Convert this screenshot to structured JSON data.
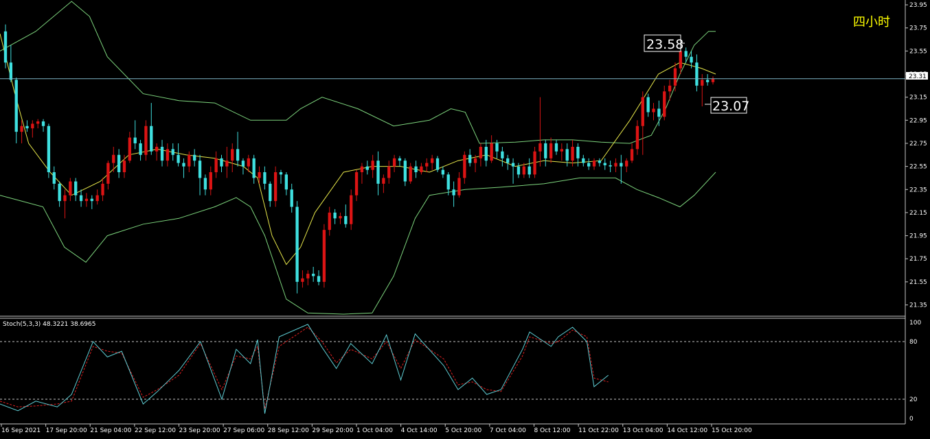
{
  "timeframe_label": "四小时",
  "price_axis": {
    "labels": [
      "23.95",
      "23.75",
      "23.55",
      "23.35",
      "23.15",
      "22.95",
      "22.75",
      "22.55",
      "22.35",
      "22.15",
      "21.95",
      "21.75",
      "21.55",
      "21.35"
    ],
    "min": 21.27,
    "max": 23.98
  },
  "current_price": "23.31",
  "annotations": {
    "high_label": "23.58",
    "low_label": "23.07"
  },
  "time_axis_labels": [
    "16 Sep 2021",
    "17 Sep 20:00",
    "21 Sep 04:00",
    "22 Sep 12:00",
    "23 Sep 20:00",
    "27 Sep 06:00",
    "28 Sep 12:00",
    "29 Sep 20:00",
    "1 Oct 04:00",
    "4 Oct 14:00",
    "5 Oct 20:00",
    "7 Oct 04:00",
    "8 Oct 12:00",
    "11 Oct 22:00",
    "13 Oct 04:00",
    "14 Oct 12:00",
    "15 Oct 20:00"
  ],
  "oscillator": {
    "label": "Stoch(5,3,3) 48.3221 38.6965",
    "axis_labels": [
      "100",
      "80",
      "20",
      "0"
    ],
    "levels": [
      80,
      20
    ]
  },
  "colors": {
    "up_candle": "#dc1414",
    "down_candle": "#3fe0e0",
    "bollinger": "#7ed67e",
    "moving_average": "#e8e84a",
    "stoch_main": "#5fcfd6",
    "stoch_signal": "#e02020",
    "current_line": "#7fb6c8",
    "timeframe_label": "#ffff00"
  },
  "chart_data": {
    "type": "candlestick",
    "price_range": [
      21.27,
      23.98
    ],
    "candles": [
      [
        23.72,
        23.78,
        23.4,
        23.45
      ],
      [
        23.45,
        23.6,
        23.28,
        23.3
      ],
      [
        23.3,
        23.32,
        22.75,
        22.85
      ],
      [
        22.85,
        22.95,
        22.75,
        22.9
      ],
      [
        22.9,
        22.95,
        22.85,
        22.88
      ],
      [
        22.88,
        22.95,
        22.8,
        22.92
      ],
      [
        22.92,
        22.96,
        22.88,
        22.94
      ],
      [
        22.94,
        22.96,
        22.85,
        22.9
      ],
      [
        22.9,
        22.92,
        22.45,
        22.5
      ],
      [
        22.5,
        22.55,
        22.35,
        22.4
      ],
      [
        22.4,
        22.42,
        22.2,
        22.25
      ],
      [
        22.25,
        22.35,
        22.1,
        22.3
      ],
      [
        22.3,
        22.45,
        22.25,
        22.42
      ],
      [
        22.42,
        22.45,
        22.25,
        22.3
      ],
      [
        22.3,
        22.35,
        22.2,
        22.25
      ],
      [
        22.25,
        22.32,
        22.2,
        22.27
      ],
      [
        22.27,
        22.3,
        22.18,
        22.25
      ],
      [
        22.25,
        22.35,
        22.22,
        22.3
      ],
      [
        22.3,
        22.45,
        22.25,
        22.4
      ],
      [
        22.4,
        22.6,
        22.35,
        22.58
      ],
      [
        22.58,
        22.72,
        22.5,
        22.65
      ],
      [
        22.65,
        22.7,
        22.45,
        22.5
      ],
      [
        22.5,
        22.65,
        22.45,
        22.6
      ],
      [
        22.6,
        22.85,
        22.58,
        22.8
      ],
      [
        22.8,
        22.95,
        22.7,
        22.75
      ],
      [
        22.75,
        22.78,
        22.6,
        22.65
      ],
      [
        22.65,
        22.95,
        22.6,
        22.9
      ],
      [
        22.9,
        23.1,
        22.65,
        22.68
      ],
      [
        22.68,
        22.75,
        22.6,
        22.72
      ],
      [
        22.72,
        22.78,
        22.55,
        22.6
      ],
      [
        22.6,
        22.75,
        22.55,
        22.7
      ],
      [
        22.7,
        22.75,
        22.6,
        22.65
      ],
      [
        22.65,
        22.75,
        22.55,
        22.58
      ],
      [
        22.58,
        22.62,
        22.45,
        22.55
      ],
      [
        22.55,
        22.68,
        22.5,
        22.65
      ],
      [
        22.65,
        22.7,
        22.55,
        22.6
      ],
      [
        22.6,
        22.65,
        22.3,
        22.45
      ],
      [
        22.45,
        22.48,
        22.3,
        22.35
      ],
      [
        22.35,
        22.55,
        22.3,
        22.5
      ],
      [
        22.5,
        22.68,
        22.45,
        22.62
      ],
      [
        22.62,
        22.65,
        22.5,
        22.55
      ],
      [
        22.55,
        22.72,
        22.45,
        22.6
      ],
      [
        22.6,
        22.75,
        22.5,
        22.7
      ],
      [
        22.7,
        22.85,
        22.55,
        22.6
      ],
      [
        22.6,
        22.62,
        22.48,
        22.55
      ],
      [
        22.55,
        22.65,
        22.5,
        22.62
      ],
      [
        22.62,
        22.65,
        22.4,
        22.45
      ],
      [
        22.45,
        22.55,
        22.4,
        22.5
      ],
      [
        22.5,
        22.55,
        22.35,
        22.4
      ],
      [
        22.4,
        22.42,
        22.2,
        22.25
      ],
      [
        22.25,
        22.55,
        22.2,
        22.5
      ],
      [
        22.5,
        22.52,
        22.4,
        22.48
      ],
      [
        22.48,
        22.5,
        22.3,
        22.35
      ],
      [
        22.35,
        22.4,
        22.15,
        22.2
      ],
      [
        22.2,
        22.25,
        21.45,
        21.55
      ],
      [
        21.55,
        21.65,
        21.5,
        21.58
      ],
      [
        21.58,
        21.65,
        21.52,
        21.62
      ],
      [
        21.62,
        21.68,
        21.55,
        21.6
      ],
      [
        21.6,
        21.65,
        21.52,
        21.55
      ],
      [
        21.55,
        22.05,
        21.5,
        22.0
      ],
      [
        22.0,
        22.2,
        21.95,
        22.15
      ],
      [
        22.15,
        22.18,
        22.05,
        22.1
      ],
      [
        22.1,
        22.15,
        22.05,
        22.12
      ],
      [
        22.12,
        22.22,
        22.02,
        22.05
      ],
      [
        22.05,
        22.35,
        22.0,
        22.3
      ],
      [
        22.3,
        22.52,
        22.25,
        22.5
      ],
      [
        22.5,
        22.58,
        22.4,
        22.55
      ],
      [
        22.55,
        22.6,
        22.48,
        22.52
      ],
      [
        22.52,
        22.65,
        22.45,
        22.6
      ],
      [
        22.6,
        22.68,
        22.3,
        22.4
      ],
      [
        22.4,
        22.48,
        22.32,
        22.45
      ],
      [
        22.45,
        22.6,
        22.4,
        22.55
      ],
      [
        22.55,
        22.65,
        22.5,
        22.62
      ],
      [
        22.62,
        22.64,
        22.55,
        22.6
      ],
      [
        22.6,
        22.62,
        22.38,
        22.42
      ],
      [
        22.42,
        22.58,
        22.4,
        22.55
      ],
      [
        22.55,
        22.6,
        22.45,
        22.5
      ],
      [
        22.5,
        22.58,
        22.48,
        22.55
      ],
      [
        22.55,
        22.62,
        22.5,
        22.58
      ],
      [
        22.58,
        22.65,
        22.52,
        22.62
      ],
      [
        22.62,
        22.64,
        22.5,
        22.52
      ],
      [
        22.52,
        22.55,
        22.45,
        22.48
      ],
      [
        22.48,
        22.5,
        22.3,
        22.35
      ],
      [
        22.35,
        22.42,
        22.2,
        22.3
      ],
      [
        22.3,
        22.5,
        22.28,
        22.45
      ],
      [
        22.45,
        22.68,
        22.4,
        22.65
      ],
      [
        22.65,
        22.7,
        22.55,
        22.58
      ],
      [
        22.58,
        22.65,
        22.5,
        22.62
      ],
      [
        22.62,
        22.75,
        22.55,
        22.72
      ],
      [
        22.72,
        22.78,
        22.55,
        22.6
      ],
      [
        22.6,
        22.82,
        22.58,
        22.75
      ],
      [
        22.75,
        22.78,
        22.62,
        22.68
      ],
      [
        22.68,
        22.72,
        22.55,
        22.62
      ],
      [
        22.62,
        22.65,
        22.52,
        22.58
      ],
      [
        22.58,
        22.62,
        22.4,
        22.55
      ],
      [
        22.55,
        22.58,
        22.45,
        22.48
      ],
      [
        22.48,
        22.58,
        22.45,
        22.55
      ],
      [
        22.55,
        22.62,
        22.45,
        22.48
      ],
      [
        22.48,
        22.72,
        22.45,
        22.68
      ],
      [
        22.68,
        23.15,
        22.55,
        22.75
      ],
      [
        22.75,
        22.78,
        22.55,
        22.62
      ],
      [
        22.62,
        22.8,
        22.58,
        22.75
      ],
      [
        22.75,
        22.78,
        22.65,
        22.68
      ],
      [
        22.68,
        22.75,
        22.6,
        22.7
      ],
      [
        22.7,
        22.75,
        22.55,
        22.6
      ],
      [
        22.6,
        22.78,
        22.55,
        22.72
      ],
      [
        22.72,
        22.75,
        22.55,
        22.62
      ],
      [
        22.62,
        22.65,
        22.55,
        22.58
      ],
      [
        22.58,
        22.62,
        22.52,
        22.55
      ],
      [
        22.55,
        22.62,
        22.52,
        22.6
      ],
      [
        22.6,
        22.62,
        22.55,
        22.58
      ],
      [
        22.58,
        22.62,
        22.52,
        22.56
      ],
      [
        22.56,
        22.6,
        22.5,
        22.55
      ],
      [
        22.55,
        22.62,
        22.5,
        22.58
      ],
      [
        22.58,
        22.65,
        22.4,
        22.55
      ],
      [
        22.55,
        22.62,
        22.5,
        22.6
      ],
      [
        22.6,
        22.75,
        22.58,
        22.7
      ],
      [
        22.7,
        22.95,
        22.65,
        22.9
      ],
      [
        22.9,
        23.2,
        22.65,
        23.15
      ],
      [
        23.15,
        23.18,
        22.98,
        23.02
      ],
      [
        23.02,
        23.1,
        22.95,
        23.05
      ],
      [
        23.05,
        23.12,
        22.9,
        22.98
      ],
      [
        22.98,
        23.25,
        22.95,
        23.2
      ],
      [
        23.2,
        23.3,
        23.12,
        23.25
      ],
      [
        23.25,
        23.45,
        23.2,
        23.4
      ],
      [
        23.4,
        23.58,
        23.35,
        23.55
      ],
      [
        23.55,
        23.58,
        23.45,
        23.5
      ],
      [
        23.5,
        23.55,
        23.4,
        23.45
      ],
      [
        23.45,
        23.52,
        23.2,
        23.25
      ],
      [
        23.25,
        23.35,
        23.07,
        23.3
      ],
      [
        23.3,
        23.35,
        23.25,
        23.28
      ],
      [
        23.28,
        23.33,
        23.26,
        23.31
      ]
    ],
    "bollinger_upper": [
      [
        0,
        23.55
      ],
      [
        0.05,
        23.72
      ],
      [
        0.1,
        23.98
      ],
      [
        0.125,
        23.85
      ],
      [
        0.15,
        23.5
      ],
      [
        0.2,
        23.18
      ],
      [
        0.25,
        23.12
      ],
      [
        0.3,
        23.1
      ],
      [
        0.35,
        22.95
      ],
      [
        0.4,
        22.95
      ],
      [
        0.42,
        23.05
      ],
      [
        0.45,
        23.15
      ],
      [
        0.5,
        23.05
      ],
      [
        0.55,
        22.9
      ],
      [
        0.6,
        22.95
      ],
      [
        0.63,
        23.05
      ],
      [
        0.65,
        23.02
      ],
      [
        0.67,
        22.75
      ],
      [
        0.72,
        22.76
      ],
      [
        0.76,
        22.78
      ],
      [
        0.8,
        22.78
      ],
      [
        0.84,
        22.76
      ],
      [
        0.88,
        22.75
      ],
      [
        0.91,
        22.82
      ],
      [
        0.93,
        23.05
      ],
      [
        0.95,
        23.35
      ],
      [
        0.97,
        23.6
      ],
      [
        0.99,
        23.72
      ],
      [
        1,
        23.72
      ]
    ],
    "bollinger_lower": [
      [
        0,
        22.3
      ],
      [
        0.03,
        22.25
      ],
      [
        0.06,
        22.2
      ],
      [
        0.09,
        21.85
      ],
      [
        0.12,
        21.72
      ],
      [
        0.15,
        21.95
      ],
      [
        0.2,
        22.05
      ],
      [
        0.25,
        22.1
      ],
      [
        0.3,
        22.2
      ],
      [
        0.33,
        22.28
      ],
      [
        0.35,
        22.2
      ],
      [
        0.37,
        21.95
      ],
      [
        0.4,
        21.4
      ],
      [
        0.43,
        21.28
      ],
      [
        0.48,
        21.27
      ],
      [
        0.52,
        21.28
      ],
      [
        0.55,
        21.6
      ],
      [
        0.58,
        22.1
      ],
      [
        0.6,
        22.3
      ],
      [
        0.65,
        22.35
      ],
      [
        0.7,
        22.37
      ],
      [
        0.76,
        22.4
      ],
      [
        0.81,
        22.45
      ],
      [
        0.86,
        22.45
      ],
      [
        0.89,
        22.35
      ],
      [
        0.92,
        22.28
      ],
      [
        0.95,
        22.2
      ],
      [
        0.97,
        22.3
      ],
      [
        1,
        22.5
      ]
    ],
    "moving_average": [
      [
        0,
        23.7
      ],
      [
        0.02,
        23.2
      ],
      [
        0.04,
        22.75
      ],
      [
        0.07,
        22.5
      ],
      [
        0.1,
        22.3
      ],
      [
        0.14,
        22.42
      ],
      [
        0.18,
        22.65
      ],
      [
        0.22,
        22.7
      ],
      [
        0.26,
        22.65
      ],
      [
        0.3,
        22.62
      ],
      [
        0.34,
        22.55
      ],
      [
        0.36,
        22.45
      ],
      [
        0.38,
        21.95
      ],
      [
        0.4,
        21.7
      ],
      [
        0.42,
        21.85
      ],
      [
        0.44,
        22.15
      ],
      [
        0.48,
        22.5
      ],
      [
        0.52,
        22.55
      ],
      [
        0.56,
        22.55
      ],
      [
        0.6,
        22.5
      ],
      [
        0.64,
        22.6
      ],
      [
        0.68,
        22.65
      ],
      [
        0.72,
        22.55
      ],
      [
        0.76,
        22.6
      ],
      [
        0.8,
        22.58
      ],
      [
        0.84,
        22.6
      ],
      [
        0.88,
        22.95
      ],
      [
        0.92,
        23.35
      ],
      [
        0.95,
        23.45
      ],
      [
        0.98,
        23.4
      ],
      [
        1,
        23.35
      ]
    ],
    "stochastic_main": [
      [
        0,
        15
      ],
      [
        0.025,
        8
      ],
      [
        0.05,
        18
      ],
      [
        0.08,
        12
      ],
      [
        0.1,
        25
      ],
      [
        0.13,
        80
      ],
      [
        0.15,
        64
      ],
      [
        0.17,
        70
      ],
      [
        0.2,
        15
      ],
      [
        0.22,
        28
      ],
      [
        0.25,
        50
      ],
      [
        0.28,
        80
      ],
      [
        0.31,
        20
      ],
      [
        0.33,
        72
      ],
      [
        0.35,
        57
      ],
      [
        0.36,
        82
      ],
      [
        0.37,
        5
      ],
      [
        0.39,
        85
      ],
      [
        0.43,
        98
      ],
      [
        0.45,
        74
      ],
      [
        0.47,
        52
      ],
      [
        0.49,
        78
      ],
      [
        0.52,
        57
      ],
      [
        0.54,
        87
      ],
      [
        0.56,
        40
      ],
      [
        0.58,
        88
      ],
      [
        0.62,
        55
      ],
      [
        0.64,
        30
      ],
      [
        0.66,
        42
      ],
      [
        0.68,
        25
      ],
      [
        0.7,
        30
      ],
      [
        0.73,
        72
      ],
      [
        0.74,
        90
      ],
      [
        0.77,
        75
      ],
      [
        0.78,
        85
      ],
      [
        0.8,
        95
      ],
      [
        0.82,
        80
      ],
      [
        0.83,
        33
      ],
      [
        0.85,
        45
      ]
    ],
    "stochastic_signal": [
      [
        0,
        18
      ],
      [
        0.025,
        12
      ],
      [
        0.05,
        13
      ],
      [
        0.08,
        15
      ],
      [
        0.1,
        18
      ],
      [
        0.13,
        75
      ],
      [
        0.15,
        70
      ],
      [
        0.17,
        68
      ],
      [
        0.2,
        22
      ],
      [
        0.22,
        30
      ],
      [
        0.25,
        45
      ],
      [
        0.28,
        78
      ],
      [
        0.31,
        30
      ],
      [
        0.33,
        65
      ],
      [
        0.35,
        62
      ],
      [
        0.36,
        75
      ],
      [
        0.37,
        10
      ],
      [
        0.39,
        75
      ],
      [
        0.43,
        95
      ],
      [
        0.45,
        80
      ],
      [
        0.47,
        58
      ],
      [
        0.49,
        72
      ],
      [
        0.52,
        62
      ],
      [
        0.54,
        80
      ],
      [
        0.56,
        52
      ],
      [
        0.58,
        82
      ],
      [
        0.62,
        62
      ],
      [
        0.64,
        35
      ],
      [
        0.66,
        38
      ],
      [
        0.68,
        30
      ],
      [
        0.7,
        28
      ],
      [
        0.73,
        65
      ],
      [
        0.74,
        85
      ],
      [
        0.77,
        78
      ],
      [
        0.78,
        80
      ],
      [
        0.8,
        92
      ],
      [
        0.82,
        85
      ],
      [
        0.83,
        42
      ],
      [
        0.85,
        38
      ]
    ]
  }
}
